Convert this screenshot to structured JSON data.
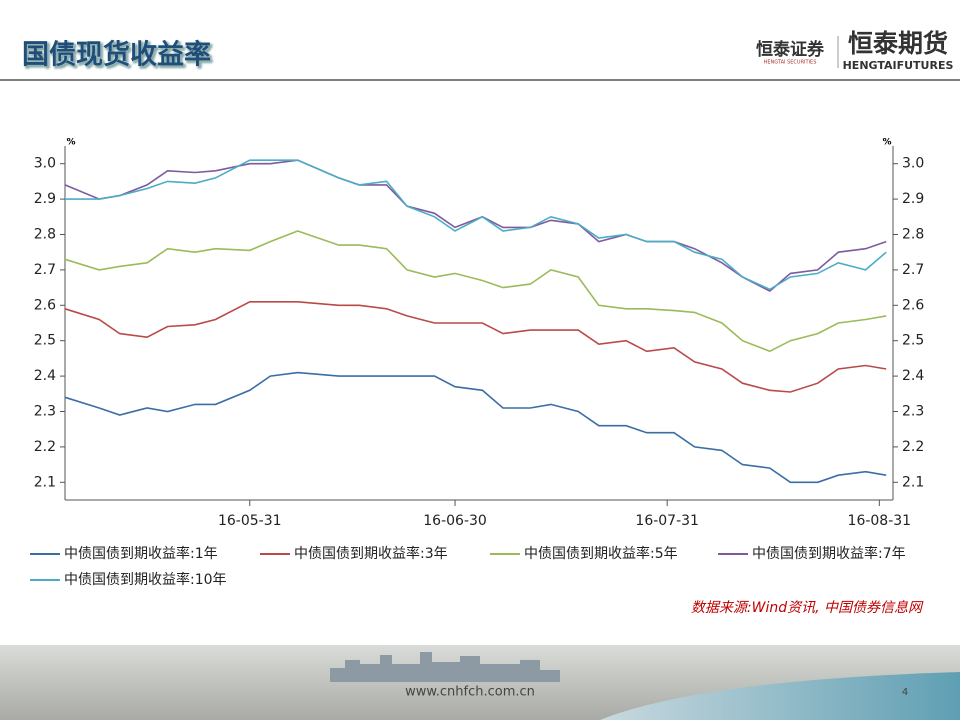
{
  "header": {
    "title": "国债现货收益率",
    "logo_left": "恒泰证券",
    "logo_left_sub": "HENGTAI SECURITIES",
    "logo_right": "恒泰期货",
    "logo_right_sub": "HENGTAIFUTURES"
  },
  "source": "数据来源:Wind资讯, 中国债券信息网",
  "footer": {
    "url": "www.cnhfch.com.cn",
    "page": "4"
  },
  "chart_data": {
    "type": "line",
    "y_unit": "%",
    "y2_unit": "%",
    "x": [
      "16-05-04",
      "16-05-09",
      "16-05-12",
      "16-05-16",
      "16-05-19",
      "16-05-23",
      "16-05-26",
      "16-05-31",
      "16-06-03",
      "16-06-07",
      "16-06-13",
      "16-06-16",
      "16-06-20",
      "16-06-23",
      "16-06-27",
      "16-06-30",
      "16-07-04",
      "16-07-07",
      "16-07-11",
      "16-07-14",
      "16-07-18",
      "16-07-21",
      "16-07-25",
      "16-07-28",
      "16-08-01",
      "16-08-04",
      "16-08-08",
      "16-08-11",
      "16-08-15",
      "16-08-18",
      "16-08-22",
      "16-08-25",
      "16-08-29",
      "16-09-01"
    ],
    "xlim": [
      "16-05-04",
      "16-09-02"
    ],
    "xticks": [
      "16-05-31",
      "16-06-30",
      "16-07-31",
      "16-08-31"
    ],
    "ylim": [
      2.05,
      3.05
    ],
    "yticks": [
      2.1,
      2.2,
      2.3,
      2.4,
      2.5,
      2.6,
      2.7,
      2.8,
      2.9,
      {
        "value": 3,
        "label": "3.0"
      }
    ],
    "y2lim": [
      2.05,
      3.05
    ],
    "y2ticks": [
      2.1,
      2.2,
      2.3,
      2.4,
      2.5,
      2.6,
      2.7,
      2.8,
      2.9,
      {
        "value": 3,
        "label": "3.0"
      }
    ],
    "legend": "bottom",
    "series": [
      {
        "name": "中债国债到期收益率:1年",
        "color": "#3a6ea5",
        "values": [
          2.34,
          2.31,
          2.29,
          2.31,
          2.3,
          2.32,
          2.32,
          2.36,
          2.4,
          2.41,
          2.4,
          2.4,
          2.4,
          2.4,
          2.4,
          2.37,
          2.36,
          2.31,
          2.31,
          2.32,
          2.3,
          2.26,
          2.26,
          2.24,
          2.24,
          2.2,
          2.19,
          2.15,
          2.14,
          2.1,
          2.1,
          2.12,
          2.13,
          2.12
        ]
      },
      {
        "name": "中债国债到期收益率:3年",
        "color": "#b94a48",
        "values": [
          2.59,
          2.56,
          2.52,
          2.51,
          2.54,
          2.545,
          2.56,
          2.61,
          2.61,
          2.61,
          2.6,
          2.6,
          2.59,
          2.57,
          2.55,
          2.55,
          2.55,
          2.52,
          2.53,
          2.53,
          2.53,
          2.49,
          2.5,
          2.47,
          2.48,
          2.44,
          2.42,
          2.38,
          2.36,
          2.355,
          2.38,
          2.42,
          2.43,
          2.42
        ]
      },
      {
        "name": "中债国债到期收益率:5年",
        "color": "#9bbb59",
        "values": [
          2.73,
          2.7,
          2.71,
          2.72,
          2.76,
          2.75,
          2.76,
          2.755,
          2.78,
          2.81,
          2.77,
          2.77,
          2.76,
          2.7,
          2.68,
          2.69,
          2.67,
          2.65,
          2.66,
          2.7,
          2.68,
          2.6,
          2.59,
          2.59,
          2.585,
          2.58,
          2.55,
          2.5,
          2.47,
          2.5,
          2.52,
          2.55,
          2.56,
          2.57
        ]
      },
      {
        "name": "中债国债到期收益率:7年",
        "color": "#7e5aa0",
        "values": [
          2.94,
          2.9,
          2.91,
          2.94,
          2.98,
          2.975,
          2.98,
          3.0,
          3.0,
          3.01,
          2.96,
          2.94,
          2.94,
          2.88,
          2.86,
          2.82,
          2.85,
          2.82,
          2.82,
          2.84,
          2.83,
          2.78,
          2.8,
          2.78,
          2.78,
          2.76,
          2.72,
          2.68,
          2.64,
          2.69,
          2.7,
          2.75,
          2.76,
          2.78
        ]
      },
      {
        "name": "中债国债到期收益率:10年",
        "color": "#4bacc6",
        "values": [
          2.9,
          2.9,
          2.91,
          2.93,
          2.95,
          2.945,
          2.96,
          3.01,
          3.01,
          3.01,
          2.96,
          2.94,
          2.95,
          2.88,
          2.85,
          2.81,
          2.85,
          2.81,
          2.82,
          2.85,
          2.83,
          2.79,
          2.8,
          2.78,
          2.78,
          2.75,
          2.73,
          2.68,
          2.645,
          2.68,
          2.69,
          2.72,
          2.7,
          2.75
        ]
      }
    ]
  }
}
